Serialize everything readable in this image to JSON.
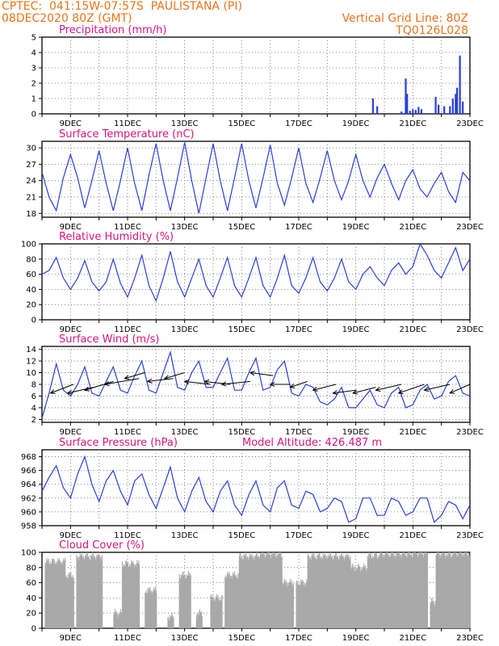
{
  "header": {
    "line1_left": "CPTEC:  041:15W-07:57S  PAULISTANA (PI)",
    "line2_left": "08DEC2020 80Z (GMT)",
    "line1_right": "Vertical Grid Line: 80Z",
    "line2_right": "TQ0126L028"
  },
  "colors": {
    "header": "#e8741a",
    "panel_title": "#d4147f",
    "line": "#2a3fd6",
    "bar": "#2a3fd6",
    "cloud": "#a8a8a8",
    "arrow": "#000000"
  },
  "x_labels": [
    "9DEC",
    "11DEC",
    "13DEC",
    "15DEC",
    "17DEC",
    "19DEC",
    "21DEC",
    "23DEC"
  ],
  "chart_data": [
    {
      "id": "precip",
      "type": "bar",
      "title": "Precipitation (mm/h)",
      "ylim": [
        0,
        5
      ],
      "yticks": [
        0,
        1,
        2,
        3,
        4,
        5
      ],
      "x_range_days": [
        8,
        23
      ],
      "values": [
        [
          19.6,
          1.0
        ],
        [
          19.75,
          0.5
        ],
        [
          20.6,
          0.15
        ],
        [
          20.75,
          2.3
        ],
        [
          20.8,
          1.3
        ],
        [
          20.9,
          0.2
        ],
        [
          21.0,
          0.3
        ],
        [
          21.1,
          0.25
        ],
        [
          21.2,
          0.45
        ],
        [
          21.3,
          0.3
        ],
        [
          21.8,
          1.1
        ],
        [
          21.9,
          0.6
        ],
        [
          22.1,
          0.5
        ],
        [
          22.3,
          0.5
        ],
        [
          22.4,
          1.0
        ],
        [
          22.5,
          1.3
        ],
        [
          22.55,
          1.7
        ],
        [
          22.65,
          3.8
        ],
        [
          22.75,
          0.8
        ]
      ]
    },
    {
      "id": "temperature",
      "type": "line",
      "title": "Surface Temperature (nC)",
      "ylim": [
        17.3,
        31.2
      ],
      "yticks": [
        18,
        21,
        24,
        27,
        30
      ],
      "x_range_days": [
        8,
        23
      ],
      "x": [
        8.0,
        8.25,
        8.5,
        8.75,
        9.0,
        9.25,
        9.5,
        9.75,
        10.0,
        10.25,
        10.5,
        10.75,
        11.0,
        11.25,
        11.5,
        11.75,
        12.0,
        12.25,
        12.5,
        12.75,
        13.0,
        13.25,
        13.5,
        13.75,
        14.0,
        14.25,
        14.5,
        14.75,
        15.0,
        15.25,
        15.5,
        15.75,
        16.0,
        16.25,
        16.5,
        16.75,
        17.0,
        17.25,
        17.5,
        17.75,
        18.0,
        18.25,
        18.5,
        18.75,
        19.0,
        19.25,
        19.5,
        19.75,
        20.0,
        20.25,
        20.5,
        20.75,
        21.0,
        21.25,
        21.5,
        21.75,
        22.0,
        22.25,
        22.5,
        22.75,
        23.0
      ],
      "y": [
        25.5,
        21.0,
        18.5,
        24.5,
        28.8,
        24.5,
        19.0,
        24.0,
        29.5,
        23.5,
        18.5,
        24.0,
        30.0,
        23.5,
        18.5,
        25.0,
        30.8,
        24.0,
        18.5,
        24.5,
        31.0,
        24.0,
        18.0,
        24.5,
        30.8,
        24.0,
        18.5,
        24.5,
        30.8,
        24.0,
        19.0,
        24.5,
        30.5,
        23.5,
        19.5,
        24.5,
        30.0,
        23.5,
        20.0,
        24.5,
        29.5,
        24.0,
        20.5,
        24.0,
        28.8,
        24.0,
        21.0,
        24.5,
        27.0,
        23.5,
        20.5,
        24.0,
        26.0,
        22.5,
        21.0,
        23.5,
        25.5,
        22.0,
        20.0,
        25.5,
        24.0
      ]
    },
    {
      "id": "humidity",
      "type": "line",
      "title": "Relative Humidity (%)",
      "ylim": [
        0,
        100
      ],
      "yticks": [
        0,
        20,
        40,
        60,
        80,
        100
      ],
      "x_range_days": [
        8,
        23
      ],
      "x": [
        8.0,
        8.25,
        8.5,
        8.75,
        9.0,
        9.25,
        9.5,
        9.75,
        10.0,
        10.25,
        10.5,
        10.75,
        11.0,
        11.25,
        11.5,
        11.75,
        12.0,
        12.25,
        12.5,
        12.75,
        13.0,
        13.25,
        13.5,
        13.75,
        14.0,
        14.25,
        14.5,
        14.75,
        15.0,
        15.25,
        15.5,
        15.75,
        16.0,
        16.25,
        16.5,
        16.75,
        17.0,
        17.25,
        17.5,
        17.75,
        18.0,
        18.25,
        18.5,
        18.75,
        19.0,
        19.25,
        19.5,
        19.75,
        20.0,
        20.25,
        20.5,
        20.75,
        21.0,
        21.25,
        21.5,
        21.75,
        22.0,
        22.25,
        22.5,
        22.75,
        23.0
      ],
      "y": [
        60,
        65,
        82,
        55,
        40,
        55,
        78,
        50,
        38,
        50,
        80,
        48,
        30,
        55,
        85,
        45,
        25,
        55,
        90,
        50,
        30,
        55,
        80,
        45,
        30,
        55,
        82,
        45,
        30,
        55,
        82,
        45,
        30,
        55,
        85,
        45,
        35,
        55,
        82,
        50,
        38,
        55,
        80,
        50,
        40,
        60,
        70,
        55,
        45,
        65,
        75,
        60,
        70,
        100,
        85,
        65,
        55,
        75,
        95,
        65,
        80
      ]
    },
    {
      "id": "wind",
      "type": "line",
      "title": "Surface Wind (m/s)",
      "ylim": [
        1.5,
        14.5
      ],
      "yticks": [
        2,
        4,
        6,
        8,
        10,
        12,
        14
      ],
      "x_range_days": [
        8,
        23
      ],
      "x": [
        8.0,
        8.25,
        8.5,
        8.75,
        9.0,
        9.25,
        9.5,
        9.75,
        10.0,
        10.25,
        10.5,
        10.75,
        11.0,
        11.25,
        11.5,
        11.75,
        12.0,
        12.25,
        12.5,
        12.75,
        13.0,
        13.25,
        13.5,
        13.75,
        14.0,
        14.25,
        14.5,
        14.75,
        15.0,
        15.25,
        15.5,
        15.75,
        16.0,
        16.25,
        16.5,
        16.75,
        17.0,
        17.25,
        17.5,
        17.75,
        18.0,
        18.25,
        18.5,
        18.75,
        19.0,
        19.25,
        19.5,
        19.75,
        20.0,
        20.25,
        20.5,
        20.75,
        21.0,
        21.25,
        21.5,
        21.75,
        22.0,
        22.25,
        22.5,
        22.75,
        23.0
      ],
      "y": [
        2.2,
        6.5,
        11.5,
        7.0,
        6.0,
        8.0,
        11.0,
        6.5,
        6.0,
        8.5,
        11.0,
        7.0,
        6.5,
        9.5,
        12.0,
        7.0,
        6.5,
        10.0,
        13.5,
        7.5,
        7.0,
        10.0,
        12.0,
        7.5,
        7.5,
        10.0,
        12.5,
        7.0,
        7.0,
        10.0,
        12.5,
        7.0,
        7.5,
        10.5,
        12.0,
        6.5,
        6.0,
        8.0,
        7.5,
        5.0,
        4.5,
        5.5,
        7.5,
        4.0,
        4.0,
        5.5,
        7.0,
        4.5,
        4.0,
        6.5,
        7.5,
        4.0,
        4.5,
        7.0,
        8.0,
        5.5,
        6.0,
        8.5,
        9.5,
        6.5,
        6.0
      ],
      "arrows": [
        [
          8.3,
          6.5,
          9.1,
          8.0
        ],
        [
          8.9,
          6.5,
          9.8,
          7.5
        ],
        [
          9.5,
          7.0,
          10.5,
          8.5
        ],
        [
          10.2,
          8.0,
          11.4,
          9.0
        ],
        [
          10.9,
          9.0,
          11.6,
          10.0
        ],
        [
          11.7,
          8.5,
          12.6,
          9.0
        ],
        [
          12.3,
          9.0,
          13.0,
          10.0
        ],
        [
          13.0,
          8.5,
          13.9,
          8.0
        ],
        [
          13.7,
          8.5,
          14.6,
          8.0
        ],
        [
          14.3,
          8.0,
          15.3,
          8.5
        ],
        [
          15.3,
          10.0,
          16.1,
          9.5
        ],
        [
          16.0,
          8.0,
          16.7,
          8.0
        ],
        [
          16.7,
          7.5,
          17.3,
          8.5
        ],
        [
          17.5,
          7.0,
          18.3,
          8.0
        ],
        [
          18.2,
          6.5,
          19.0,
          7.0
        ],
        [
          18.9,
          6.5,
          19.7,
          7.5
        ],
        [
          19.7,
          7.0,
          20.6,
          8.0
        ],
        [
          20.5,
          6.5,
          21.4,
          8.0
        ],
        [
          21.4,
          7.0,
          22.3,
          8.0
        ],
        [
          22.3,
          6.5,
          23.0,
          8.0
        ]
      ]
    },
    {
      "id": "pressure",
      "type": "line",
      "title": "Surface Pressure (hPa)",
      "annotation": "Model Altitude: 426.487 m",
      "ylim": [
        958,
        969
      ],
      "yticks": [
        958,
        960,
        962,
        964,
        966,
        968
      ],
      "x_range_days": [
        8,
        23
      ],
      "x": [
        8.0,
        8.25,
        8.5,
        8.75,
        9.0,
        9.25,
        9.5,
        9.75,
        10.0,
        10.25,
        10.5,
        10.75,
        11.0,
        11.25,
        11.5,
        11.75,
        12.0,
        12.25,
        12.5,
        12.75,
        13.0,
        13.25,
        13.5,
        13.75,
        14.0,
        14.25,
        14.5,
        14.75,
        15.0,
        15.25,
        15.5,
        15.75,
        16.0,
        16.25,
        16.5,
        16.75,
        17.0,
        17.25,
        17.5,
        17.75,
        18.0,
        18.25,
        18.5,
        18.75,
        19.0,
        19.25,
        19.5,
        19.75,
        20.0,
        20.25,
        20.5,
        20.75,
        21.0,
        21.25,
        21.5,
        21.75,
        22.0,
        22.25,
        22.5,
        22.75,
        23.0
      ],
      "y": [
        963,
        965,
        966.7,
        963.5,
        962,
        965.5,
        968,
        964,
        961.5,
        964.5,
        966,
        963,
        961,
        964.5,
        965.5,
        962.5,
        960.5,
        963.5,
        966.5,
        962,
        960,
        963,
        965,
        961.5,
        960,
        963,
        964.5,
        961,
        959.5,
        962.5,
        964.5,
        961,
        960,
        963.5,
        964.5,
        961,
        960.5,
        963,
        962.5,
        960,
        960.5,
        962,
        961.5,
        958.5,
        959,
        962,
        962,
        959.5,
        959.5,
        962,
        961.5,
        959.5,
        960,
        962,
        962,
        958.5,
        959.5,
        961.5,
        961,
        959,
        961
      ]
    },
    {
      "id": "cloud",
      "type": "bar",
      "title": "Cloud Cover (%)",
      "ylim": [
        0,
        100
      ],
      "yticks": [
        0,
        20,
        40,
        60,
        80,
        100
      ],
      "x_range_days": [
        8,
        23
      ],
      "segments": [
        [
          8.1,
          8.8,
          88
        ],
        [
          8.8,
          9.1,
          70
        ],
        [
          9.2,
          10.1,
          95
        ],
        [
          10.5,
          10.8,
          20
        ],
        [
          10.8,
          11.4,
          85
        ],
        [
          11.6,
          12.0,
          50
        ],
        [
          12.4,
          12.6,
          15
        ],
        [
          12.8,
          13.2,
          70
        ],
        [
          13.4,
          13.6,
          20
        ],
        [
          13.9,
          14.3,
          40
        ],
        [
          14.4,
          14.9,
          70
        ],
        [
          14.9,
          15.6,
          95
        ],
        [
          15.6,
          16.4,
          98
        ],
        [
          16.4,
          16.8,
          60
        ],
        [
          16.9,
          17.3,
          60
        ],
        [
          17.3,
          17.9,
          95
        ],
        [
          17.9,
          18.8,
          95
        ],
        [
          18.8,
          19.4,
          80
        ],
        [
          19.4,
          19.8,
          96
        ],
        [
          19.8,
          20.5,
          98
        ],
        [
          20.5,
          21.0,
          98
        ],
        [
          21.0,
          21.5,
          99
        ],
        [
          21.6,
          21.8,
          35
        ],
        [
          21.8,
          22.4,
          98
        ],
        [
          22.4,
          23.0,
          99
        ]
      ]
    }
  ]
}
